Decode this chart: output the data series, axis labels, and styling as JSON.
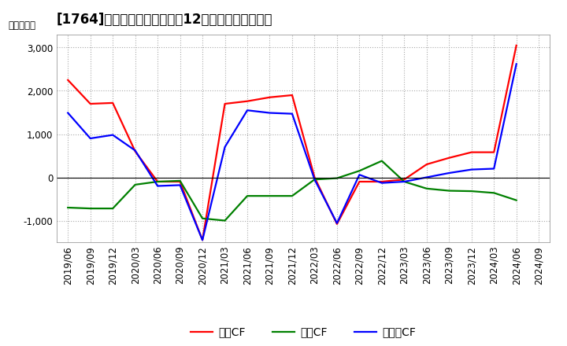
{
  "title": "[1764]　キャッシュフローの12か月移動合計の推移",
  "ylabel": "（百万円）",
  "x_labels": [
    "2019/06",
    "2019/09",
    "2019/12",
    "2020/03",
    "2020/06",
    "2020/09",
    "2020/12",
    "2021/03",
    "2021/06",
    "2021/09",
    "2021/12",
    "2022/03",
    "2022/06",
    "2022/09",
    "2022/12",
    "2023/03",
    "2023/06",
    "2023/09",
    "2023/12",
    "2024/03",
    "2024/06",
    "2024/09"
  ],
  "eigyo_cf": [
    2250,
    1700,
    1720,
    600,
    -100,
    -100,
    -1450,
    1700,
    1760,
    1850,
    1900,
    0,
    -1080,
    -100,
    -100,
    -50,
    300,
    450,
    580,
    580,
    3050,
    null
  ],
  "toshi_cf": [
    -700,
    -720,
    -720,
    -170,
    -100,
    -80,
    -950,
    -1000,
    -430,
    -430,
    -430,
    -50,
    -20,
    150,
    380,
    -100,
    -260,
    -310,
    -320,
    -360,
    -530,
    null
  ],
  "free_cf": [
    1490,
    900,
    980,
    620,
    -200,
    -180,
    -1450,
    700,
    1550,
    1490,
    1470,
    -50,
    -1060,
    60,
    -130,
    -100,
    0,
    100,
    180,
    200,
    2620,
    null
  ],
  "eigyo_color": "#ff0000",
  "toshi_color": "#008000",
  "free_color": "#0000ff",
  "ylim": [
    -1500,
    3300
  ],
  "yticks": [
    -1000,
    0,
    1000,
    2000,
    3000
  ],
  "bg_color": "#ffffff",
  "grid_color": "#aaaaaa",
  "title_fontsize": 12,
  "axis_fontsize": 8.5,
  "legend_labels": [
    "営業CF",
    "投資CF",
    "フリーCF"
  ]
}
